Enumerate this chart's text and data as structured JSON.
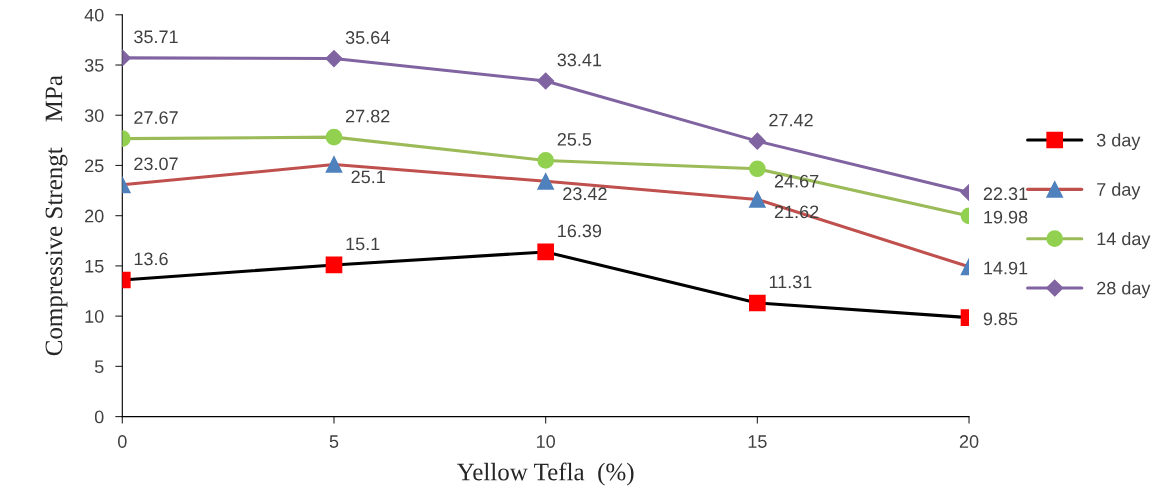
{
  "chart_data": {
    "type": "line",
    "xlabel": "Yellow Tefla  (%)",
    "ylabel": "Compressive Strengt    MPa",
    "x": [
      0,
      5,
      10,
      15,
      20
    ],
    "xlim": [
      0,
      20
    ],
    "xticks": [
      0,
      5,
      10,
      15,
      20
    ],
    "ylim": [
      0,
      40
    ],
    "yticks": [
      0,
      5,
      10,
      15,
      20,
      25,
      30,
      35,
      40
    ],
    "grid": false,
    "legend": "right",
    "data_labels": true,
    "line_style": "solid",
    "series": [
      {
        "name": "3 day",
        "color": "#000000",
        "colors": [
          "#ff0000",
          "#ff0000",
          "#ff0000",
          "#ff0000",
          "#ff0000"
        ],
        "marker": "square",
        "values": [
          13.6,
          15.1,
          16.39,
          11.31,
          9.85
        ]
      },
      {
        "name": "7 day",
        "color": "#c0504d",
        "colors": [
          "#4f81bd",
          "#4f81bd",
          "#4f81bd",
          "#4f81bd",
          "#4f81bd"
        ],
        "marker": "triangle",
        "values": [
          23.07,
          25.1,
          23.42,
          21.62,
          14.91
        ]
      },
      {
        "name": "14 day",
        "color": "#9bbb59",
        "colors": [
          "#92d050",
          "#92d050",
          "#92d050",
          "#92d050",
          "#92d050"
        ],
        "marker": "circle",
        "values": [
          27.67,
          27.82,
          25.5,
          24.67,
          19.98
        ]
      },
      {
        "name": "28 day",
        "color": "#8064a2",
        "colors": [
          "#8064a2",
          "#8064a2",
          "#8064a2",
          "#8064a2",
          "#8064a2"
        ],
        "marker": "diamond",
        "values": [
          35.71,
          35.64,
          33.41,
          27.42,
          22.31
        ]
      }
    ]
  }
}
